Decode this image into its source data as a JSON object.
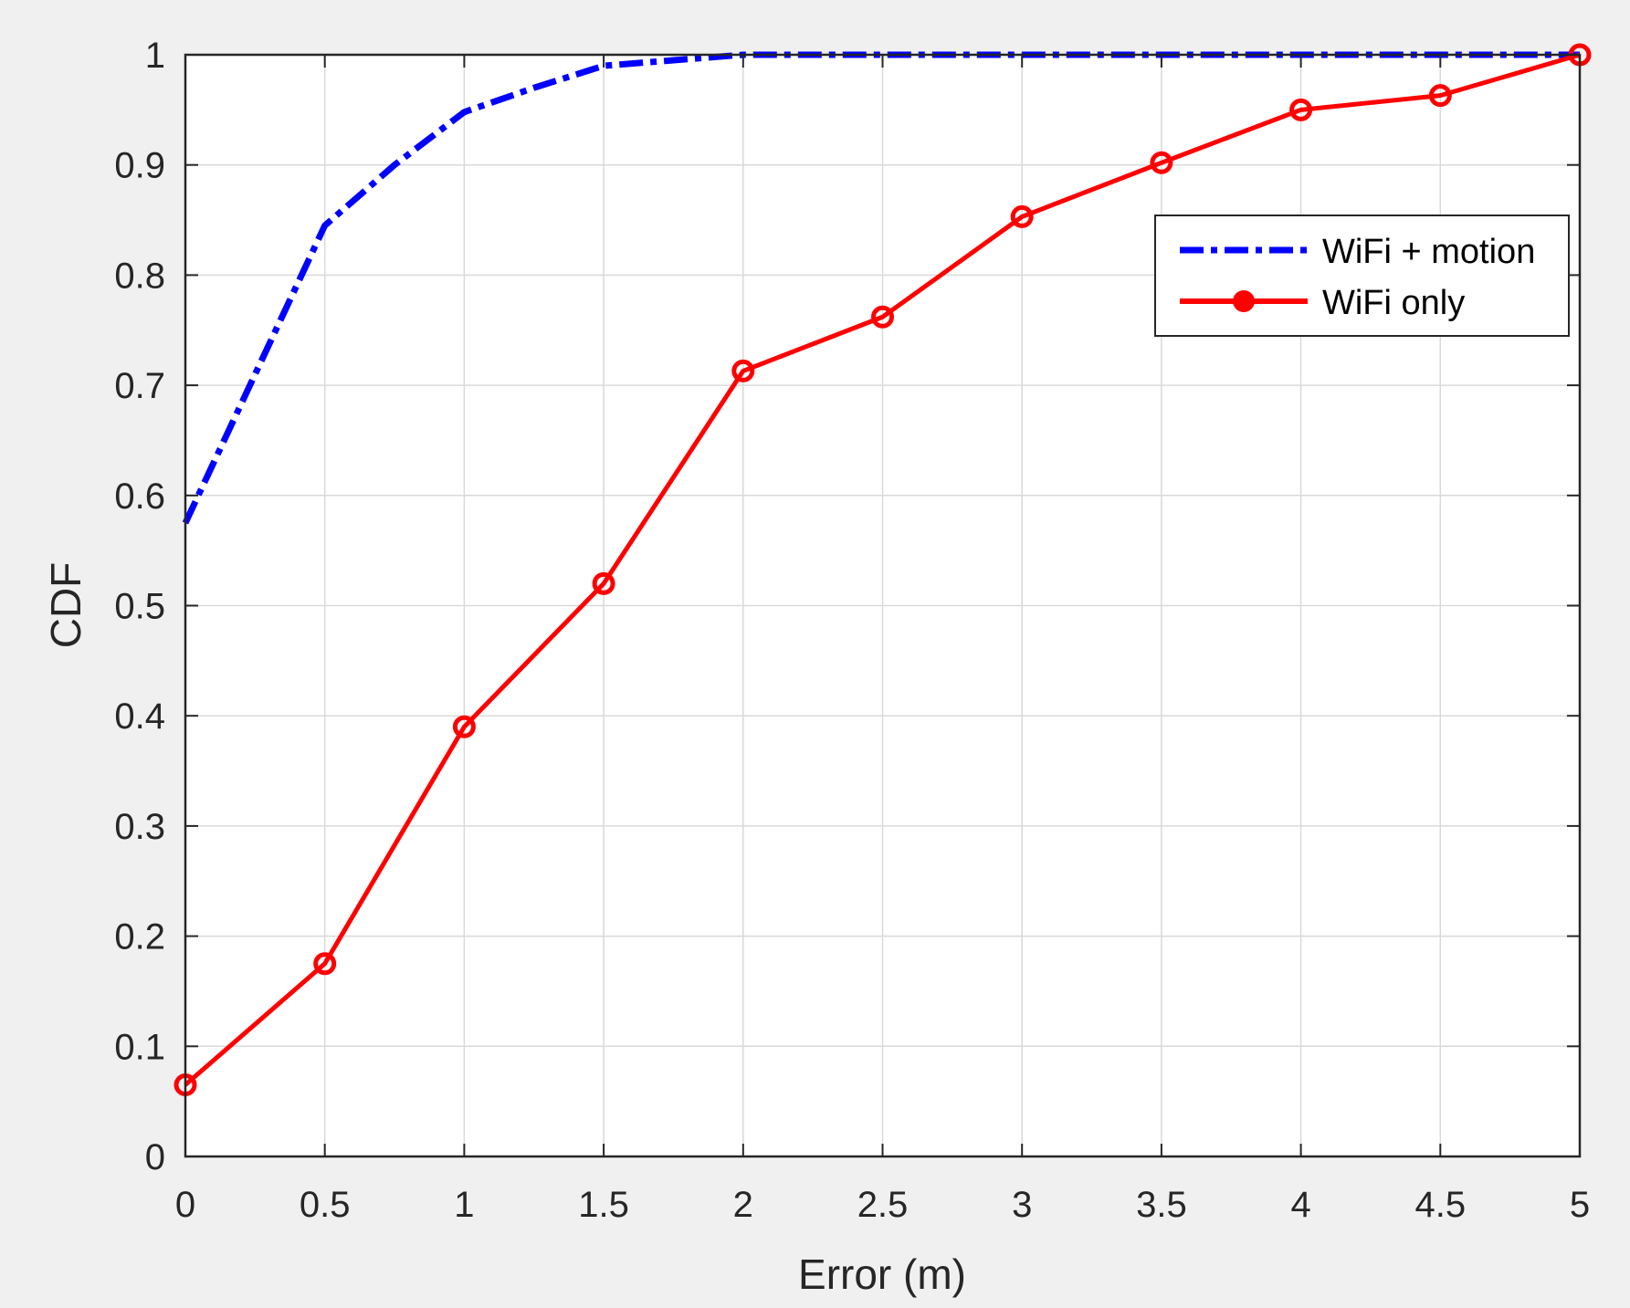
{
  "chart_data": {
    "type": "line",
    "xlabel": "Error (m)",
    "ylabel": "CDF",
    "xlim": [
      0,
      5
    ],
    "ylim": [
      0,
      1
    ],
    "xticks": [
      0,
      0.5,
      1,
      1.5,
      2,
      2.5,
      3,
      3.5,
      4,
      4.5,
      5
    ],
    "xtick_labels": [
      "0",
      "0.5",
      "1",
      "1.5",
      "2",
      "2.5",
      "3",
      "3.5",
      "4",
      "4.5",
      "5"
    ],
    "yticks": [
      0,
      0.1,
      0.2,
      0.3,
      0.4,
      0.5,
      0.6,
      0.7,
      0.8,
      0.9,
      1
    ],
    "ytick_labels": [
      "0",
      "0.1",
      "0.2",
      "0.3",
      "0.4",
      "0.5",
      "0.6",
      "0.7",
      "0.8",
      "0.9",
      "1"
    ],
    "grid": true,
    "legend_position": "top-right",
    "series": [
      {
        "name": "WiFi + motion",
        "color": "#0000ff",
        "line_style": "dash-dot",
        "marker": "none",
        "x": [
          0,
          0.25,
          0.5,
          0.75,
          1,
          1.25,
          1.5,
          1.75,
          2,
          2.5,
          3,
          3.5,
          4,
          4.5,
          5
        ],
        "y": [
          0.575,
          0.71,
          0.845,
          0.9,
          0.948,
          0.97,
          0.99,
          0.995,
          1.0,
          1.0,
          1.0,
          1.0,
          1.0,
          1.0,
          1.0
        ]
      },
      {
        "name": "WiFi only",
        "color": "#ff0000",
        "line_style": "solid",
        "marker": "circle",
        "x": [
          0,
          0.5,
          1,
          1.5,
          2,
          2.5,
          3,
          3.5,
          4,
          4.5,
          5
        ],
        "y": [
          0.065,
          0.175,
          0.39,
          0.52,
          0.713,
          0.762,
          0.853,
          0.902,
          0.95,
          0.963,
          1.0
        ]
      }
    ]
  }
}
